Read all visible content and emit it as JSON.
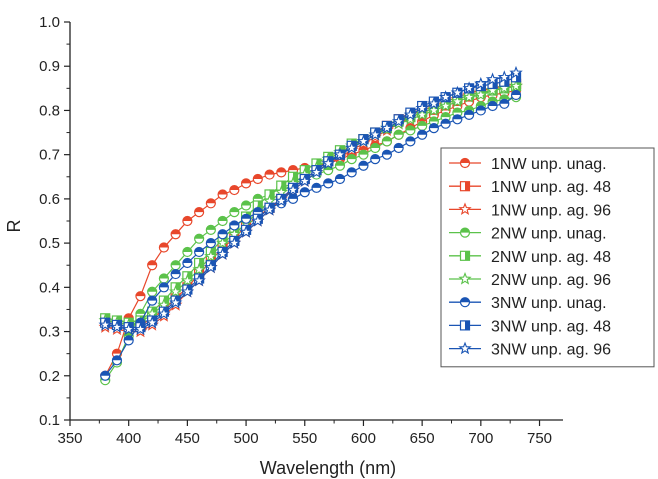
{
  "chart_data": {
    "type": "line",
    "title": "",
    "xlabel": "Wavelength (nm)",
    "ylabel": "R",
    "xlim": [
      350,
      770
    ],
    "ylim": [
      0.1,
      1.0
    ],
    "xticks": [
      350,
      400,
      450,
      500,
      550,
      600,
      650,
      700,
      750
    ],
    "yticks": [
      0.1,
      0.2,
      0.3,
      0.4,
      0.5,
      0.6,
      0.7,
      0.8,
      0.9,
      1.0
    ],
    "xtick_labels": [
      "350",
      "400",
      "450",
      "500",
      "550",
      "600",
      "650",
      "700",
      "750"
    ],
    "ytick_labels": [
      "0.1",
      "0.2",
      "0.3",
      "0.4",
      "0.5",
      "0.6",
      "0.7",
      "0.8",
      "0.9",
      "1.0"
    ],
    "grid": false,
    "legend_position": "right",
    "x": [
      380,
      390,
      400,
      410,
      420,
      430,
      440,
      450,
      460,
      470,
      480,
      490,
      500,
      510,
      520,
      530,
      540,
      550,
      560,
      570,
      580,
      590,
      600,
      610,
      620,
      630,
      640,
      650,
      660,
      670,
      680,
      690,
      700,
      710,
      720,
      730
    ],
    "series": [
      {
        "name": "1NW unp. unag.",
        "color": "#e8472b",
        "marker": "circle-half",
        "values": [
          0.2,
          0.25,
          0.33,
          0.38,
          0.45,
          0.49,
          0.52,
          0.55,
          0.57,
          0.59,
          0.61,
          0.62,
          0.635,
          0.645,
          0.655,
          0.66,
          0.665,
          0.67,
          0.675,
          0.68,
          0.69,
          0.7,
          0.71,
          0.72,
          0.73,
          0.745,
          0.76,
          0.775,
          0.79,
          0.8,
          0.81,
          0.82,
          0.83,
          0.835,
          0.84,
          0.845
        ]
      },
      {
        "name": "1NW unp. ag. 48",
        "color": "#e8472b",
        "marker": "square-half",
        "values": [
          0.325,
          0.32,
          0.315,
          0.315,
          0.33,
          0.35,
          0.375,
          0.4,
          0.43,
          0.46,
          0.49,
          0.51,
          0.54,
          0.56,
          0.58,
          0.6,
          0.625,
          0.645,
          0.665,
          0.685,
          0.7,
          0.72,
          0.735,
          0.75,
          0.765,
          0.78,
          0.79,
          0.8,
          0.81,
          0.82,
          0.83,
          0.84,
          0.845,
          0.85,
          0.855,
          0.86
        ]
      },
      {
        "name": "1NW unp. ag. 96",
        "color": "#e8472b",
        "marker": "star",
        "values": [
          0.31,
          0.305,
          0.3,
          0.3,
          0.315,
          0.335,
          0.36,
          0.39,
          0.415,
          0.445,
          0.475,
          0.5,
          0.525,
          0.55,
          0.575,
          0.6,
          0.62,
          0.64,
          0.66,
          0.68,
          0.695,
          0.71,
          0.725,
          0.74,
          0.755,
          0.77,
          0.785,
          0.795,
          0.805,
          0.815,
          0.825,
          0.835,
          0.84,
          0.845,
          0.85,
          0.855
        ]
      },
      {
        "name": "2NW unp. unag.",
        "color": "#5bc24a",
        "marker": "circle-half",
        "values": [
          0.19,
          0.23,
          0.29,
          0.34,
          0.39,
          0.42,
          0.45,
          0.48,
          0.51,
          0.53,
          0.55,
          0.57,
          0.585,
          0.6,
          0.61,
          0.625,
          0.635,
          0.645,
          0.655,
          0.665,
          0.675,
          0.69,
          0.7,
          0.715,
          0.73,
          0.745,
          0.755,
          0.765,
          0.775,
          0.785,
          0.795,
          0.8,
          0.81,
          0.82,
          0.825,
          0.83
        ]
      },
      {
        "name": "2NW unp. ag. 48",
        "color": "#5bc24a",
        "marker": "square-half",
        "values": [
          0.33,
          0.325,
          0.32,
          0.325,
          0.345,
          0.37,
          0.4,
          0.425,
          0.455,
          0.48,
          0.51,
          0.535,
          0.56,
          0.585,
          0.61,
          0.63,
          0.65,
          0.665,
          0.68,
          0.695,
          0.71,
          0.725,
          0.735,
          0.75,
          0.76,
          0.775,
          0.785,
          0.795,
          0.805,
          0.815,
          0.825,
          0.835,
          0.84,
          0.845,
          0.85,
          0.855
        ]
      },
      {
        "name": "2NW unp. ag. 96",
        "color": "#5bc24a",
        "marker": "star",
        "values": [
          0.325,
          0.32,
          0.315,
          0.32,
          0.34,
          0.36,
          0.39,
          0.415,
          0.44,
          0.47,
          0.5,
          0.52,
          0.545,
          0.57,
          0.595,
          0.615,
          0.635,
          0.655,
          0.67,
          0.69,
          0.705,
          0.72,
          0.73,
          0.745,
          0.76,
          0.77,
          0.78,
          0.79,
          0.8,
          0.81,
          0.82,
          0.83,
          0.835,
          0.845,
          0.85,
          0.855
        ]
      },
      {
        "name": "3NW unp. unag.",
        "color": "#1a55b4",
        "marker": "circle-half",
        "values": [
          0.2,
          0.235,
          0.28,
          0.32,
          0.37,
          0.4,
          0.43,
          0.455,
          0.48,
          0.5,
          0.52,
          0.54,
          0.555,
          0.57,
          0.58,
          0.59,
          0.6,
          0.615,
          0.625,
          0.635,
          0.645,
          0.66,
          0.675,
          0.69,
          0.7,
          0.715,
          0.73,
          0.745,
          0.76,
          0.77,
          0.78,
          0.79,
          0.8,
          0.81,
          0.815,
          0.835
        ]
      },
      {
        "name": "3NW unp. ag. 48",
        "color": "#1a55b4",
        "marker": "square-half",
        "values": [
          0.32,
          0.315,
          0.31,
          0.31,
          0.325,
          0.345,
          0.37,
          0.395,
          0.42,
          0.45,
          0.48,
          0.505,
          0.53,
          0.555,
          0.58,
          0.6,
          0.625,
          0.645,
          0.665,
          0.685,
          0.7,
          0.72,
          0.735,
          0.75,
          0.765,
          0.78,
          0.795,
          0.81,
          0.82,
          0.83,
          0.84,
          0.85,
          0.855,
          0.86,
          0.865,
          0.875
        ]
      },
      {
        "name": "3NW unp. ag. 96",
        "color": "#1a55b4",
        "marker": "star",
        "values": [
          0.315,
          0.31,
          0.305,
          0.305,
          0.32,
          0.34,
          0.365,
          0.39,
          0.415,
          0.445,
          0.475,
          0.5,
          0.525,
          0.55,
          0.575,
          0.595,
          0.62,
          0.64,
          0.66,
          0.68,
          0.7,
          0.715,
          0.73,
          0.745,
          0.76,
          0.775,
          0.79,
          0.805,
          0.815,
          0.83,
          0.84,
          0.85,
          0.86,
          0.87,
          0.875,
          0.885
        ]
      }
    ]
  }
}
